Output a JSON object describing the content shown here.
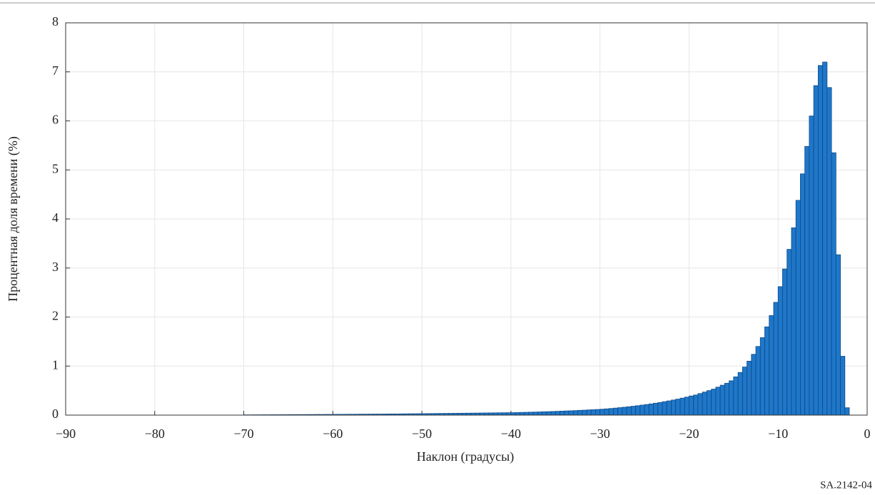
{
  "chart_data": {
    "type": "histogram",
    "x_label": "Наклон (градусы)",
    "y_label": "Процентная доля времени (%)",
    "note": "SA.2142-04",
    "color": "#1f77c9",
    "edge_color": "#0d4a8a",
    "grid": true,
    "xlim": [
      -90,
      0
    ],
    "xticks": [
      {
        "value": -90,
        "label": "−90"
      },
      {
        "value": -80,
        "label": "−80"
      },
      {
        "value": -70,
        "label": "−70"
      },
      {
        "value": -60,
        "label": "−60"
      },
      {
        "value": -50,
        "label": "−50"
      },
      {
        "value": -40,
        "label": "−40"
      },
      {
        "value": -30,
        "label": "−30"
      },
      {
        "value": -20,
        "label": "−20"
      },
      {
        "value": -10,
        "label": "−10"
      },
      0
    ],
    "ylim": [
      0,
      8
    ],
    "yticks": [
      0,
      1,
      2,
      3,
      4,
      5,
      6,
      7,
      8
    ],
    "bins": [
      -70,
      -69.5,
      -69,
      -68.5,
      -68,
      -67.5,
      -67,
      -66.5,
      -66,
      -65.5,
      -65,
      -64.5,
      -64,
      -63.5,
      -63,
      -62.5,
      -62,
      -61.5,
      -61,
      -60.5,
      -60,
      -59.5,
      -59,
      -58.5,
      -58,
      -57.5,
      -57,
      -56.5,
      -56,
      -55.5,
      -55,
      -54.5,
      -54,
      -53.5,
      -53,
      -52.5,
      -52,
      -51.5,
      -51,
      -50.5,
      -50,
      -49.5,
      -49,
      -48.5,
      -48,
      -47.5,
      -47,
      -46.5,
      -46,
      -45.5,
      -45,
      -44.5,
      -44,
      -43.5,
      -43,
      -42.5,
      -42,
      -41.5,
      -41,
      -40.5,
      -40,
      -39.5,
      -39,
      -38.5,
      -38,
      -37.5,
      -37,
      -36.5,
      -36,
      -35.5,
      -35,
      -34.5,
      -34,
      -33.5,
      -33,
      -32.5,
      -32,
      -31.5,
      -31,
      -30.5,
      -30,
      -29.5,
      -29,
      -28.5,
      -28,
      -27.5,
      -27,
      -26.5,
      -26,
      -25.5,
      -25,
      -24.5,
      -24,
      -23.5,
      -23,
      -22.5,
      -22,
      -21.5,
      -21,
      -20.5,
      -20,
      -19.5,
      -19,
      -18.5,
      -18,
      -17.5,
      -17,
      -16.5,
      -16,
      -15.5,
      -15,
      -14.5,
      -14,
      -13.5,
      -13,
      -12.5,
      -12,
      -11.5,
      -11,
      -10.5,
      -10,
      -9.5,
      -9,
      -8.5,
      -8,
      -7.5,
      -7,
      -6.5,
      -6,
      -5.5,
      -5,
      -4.5,
      -4,
      -3.5,
      -3,
      -2.5,
      -2
    ],
    "values": [
      0.005,
      0.005,
      0.006,
      0.006,
      0.007,
      0.007,
      0.008,
      0.008,
      0.009,
      0.009,
      0.01,
      0.01,
      0.011,
      0.011,
      0.012,
      0.012,
      0.013,
      0.013,
      0.014,
      0.014,
      0.015,
      0.016,
      0.016,
      0.017,
      0.017,
      0.018,
      0.019,
      0.019,
      0.02,
      0.021,
      0.021,
      0.022,
      0.023,
      0.024,
      0.024,
      0.025,
      0.026,
      0.027,
      0.028,
      0.029,
      0.03,
      0.031,
      0.032,
      0.033,
      0.034,
      0.035,
      0.036,
      0.037,
      0.038,
      0.039,
      0.04,
      0.041,
      0.042,
      0.043,
      0.044,
      0.045,
      0.046,
      0.047,
      0.048,
      0.049,
      0.05,
      0.052,
      0.055,
      0.057,
      0.06,
      0.062,
      0.065,
      0.068,
      0.071,
      0.074,
      0.077,
      0.081,
      0.085,
      0.088,
      0.092,
      0.097,
      0.101,
      0.106,
      0.11,
      0.115,
      0.12,
      0.127,
      0.135,
      0.143,
      0.152,
      0.161,
      0.171,
      0.181,
      0.192,
      0.204,
      0.216,
      0.229,
      0.243,
      0.258,
      0.274,
      0.29,
      0.308,
      0.326,
      0.346,
      0.367,
      0.39,
      0.41,
      0.44,
      0.47,
      0.5,
      0.53,
      0.57,
      0.61,
      0.65,
      0.7,
      0.78,
      0.87,
      0.98,
      1.1,
      1.24,
      1.4,
      1.58,
      1.8,
      2.03,
      2.3,
      2.62,
      2.98,
      3.38,
      3.82,
      4.38,
      4.92,
      5.48,
      6.1,
      6.72,
      7.13,
      7.2,
      6.68,
      5.35,
      3.27,
      1.2,
      0.15
    ]
  }
}
